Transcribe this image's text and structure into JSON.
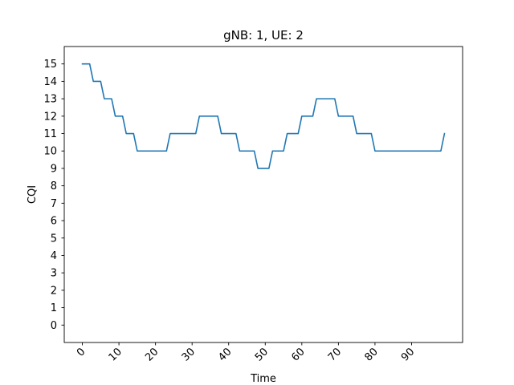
{
  "chart_data": {
    "type": "line",
    "title": "gNB: 1, UE: 2",
    "xlabel": "Time",
    "ylabel": "CQI",
    "xlim": [
      -4.95,
      103.95
    ],
    "ylim": [
      -1,
      16
    ],
    "xticks": [
      0,
      10,
      20,
      30,
      40,
      50,
      60,
      70,
      80,
      90
    ],
    "yticks": [
      0,
      1,
      2,
      3,
      4,
      5,
      6,
      7,
      8,
      9,
      10,
      11,
      12,
      13,
      14,
      15
    ],
    "grid": false,
    "color": "#1f77b4",
    "series": [
      {
        "x": [
          0,
          1,
          2,
          3,
          4,
          5,
          6,
          7,
          8,
          9,
          10,
          11,
          12,
          13,
          14,
          15,
          16,
          17,
          18,
          19,
          20,
          21,
          22,
          23,
          24,
          25,
          26,
          27,
          28,
          29,
          30,
          31,
          32,
          33,
          34,
          35,
          36,
          37,
          38,
          39,
          40,
          41,
          42,
          43,
          44,
          45,
          46,
          47,
          48,
          49,
          50,
          51,
          52,
          53,
          54,
          55,
          56,
          57,
          58,
          59,
          60,
          61,
          62,
          63,
          64,
          65,
          66,
          67,
          68,
          69,
          70,
          71,
          72,
          73,
          74,
          75,
          76,
          77,
          78,
          79,
          80,
          81,
          82,
          83,
          84,
          85,
          86,
          87,
          88,
          89,
          90,
          91,
          92,
          93,
          94,
          95,
          96,
          97,
          98,
          99
        ],
        "values": [
          15,
          15,
          15,
          14,
          14,
          14,
          13,
          13,
          13,
          12,
          12,
          12,
          11,
          11,
          11,
          10,
          10,
          10,
          10,
          10,
          10,
          10,
          10,
          10,
          11,
          11,
          11,
          11,
          11,
          11,
          11,
          11,
          12,
          12,
          12,
          12,
          12,
          12,
          11,
          11,
          11,
          11,
          11,
          10,
          10,
          10,
          10,
          10,
          9,
          9,
          9,
          9,
          10,
          10,
          10,
          10,
          11,
          11,
          11,
          11,
          12,
          12,
          12,
          12,
          13,
          13,
          13,
          13,
          13,
          13,
          12,
          12,
          12,
          12,
          12,
          11,
          11,
          11,
          11,
          11,
          10,
          10,
          10,
          10,
          10,
          10,
          10,
          10,
          10,
          10,
          10,
          10,
          10,
          10,
          10,
          10,
          10,
          10,
          10,
          11
        ]
      }
    ]
  }
}
